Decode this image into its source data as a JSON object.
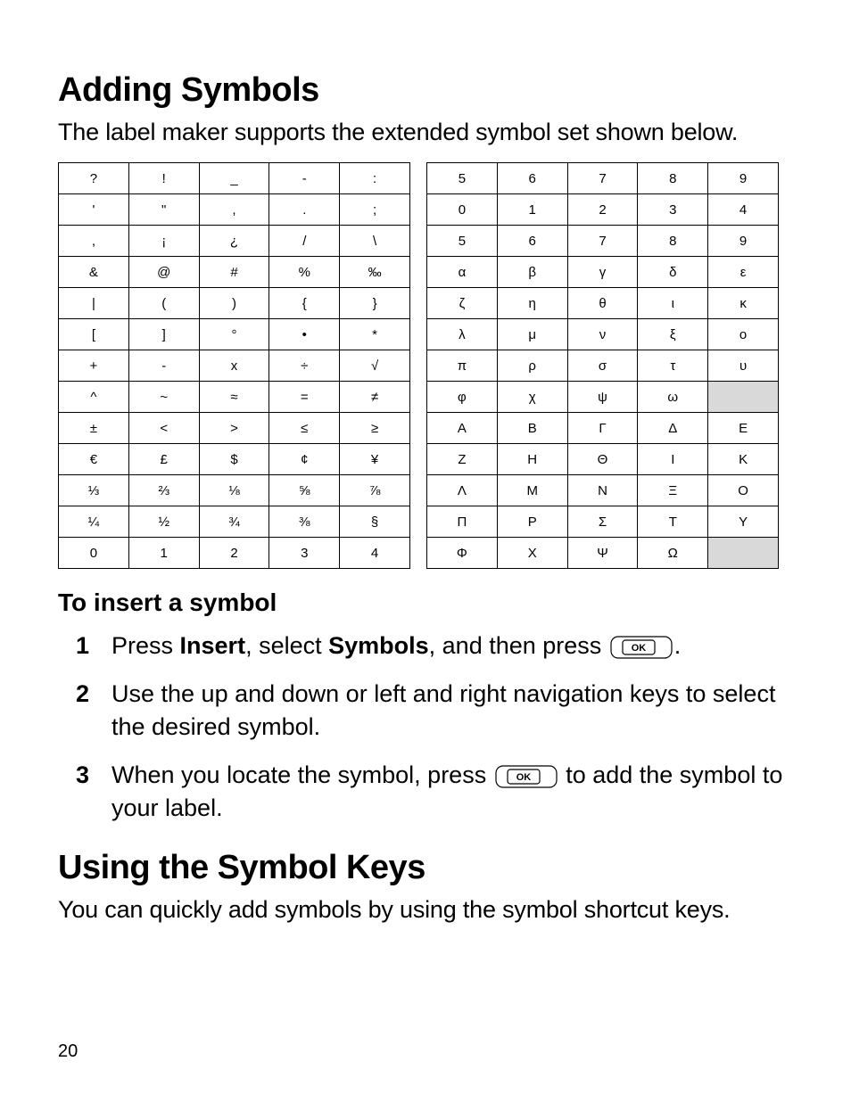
{
  "heading1": "Adding Symbols",
  "intro": "The label maker supports the extended symbol set shown below.",
  "left_table": {
    "columns": 5,
    "rows": [
      [
        "?",
        "!",
        "_",
        "-",
        ":"
      ],
      [
        "'",
        "\"",
        ",",
        ".",
        ";"
      ],
      [
        ",",
        "¡",
        "¿",
        "/",
        "\\"
      ],
      [
        "&",
        "@",
        "#",
        "%",
        "‰"
      ],
      [
        "|",
        "(",
        ")",
        "{",
        "}"
      ],
      [
        "[",
        "]",
        "°",
        "•",
        "*"
      ],
      [
        "+",
        "-",
        "x",
        "÷",
        "√"
      ],
      [
        "^",
        "~",
        "≈",
        "=",
        "≠"
      ],
      [
        "±",
        "<",
        ">",
        "≤",
        "≥"
      ],
      [
        "€",
        "£",
        "$",
        "¢",
        "¥"
      ],
      [
        "⅓",
        "⅔",
        "⅛",
        "⅝",
        "⅞"
      ],
      [
        "¼",
        "½",
        "¾",
        "⅜",
        "§"
      ],
      [
        "0",
        "1",
        "2",
        "3",
        "4"
      ]
    ],
    "shaded": []
  },
  "right_table": {
    "columns": 5,
    "rows": [
      [
        "5",
        "6",
        "7",
        "8",
        "9"
      ],
      [
        "0",
        "1",
        "2",
        "3",
        "4"
      ],
      [
        "5",
        "6",
        "7",
        "8",
        "9"
      ],
      [
        "α",
        "β",
        "γ",
        "δ",
        "ε"
      ],
      [
        "ζ",
        "η",
        "θ",
        "ι",
        "κ"
      ],
      [
        "λ",
        "μ",
        "ν",
        "ξ",
        "ο"
      ],
      [
        "π",
        "ρ",
        "σ",
        "τ",
        "υ"
      ],
      [
        "φ",
        "χ",
        "ψ",
        "ω",
        ""
      ],
      [
        "Α",
        "Β",
        "Γ",
        "Δ",
        "Ε"
      ],
      [
        "Ζ",
        "Η",
        "Θ",
        "Ι",
        "Κ"
      ],
      [
        "Λ",
        "Μ",
        "Ν",
        "Ξ",
        "Ο"
      ],
      [
        "Π",
        "Ρ",
        "Σ",
        "Τ",
        "Υ"
      ],
      [
        "Φ",
        "Χ",
        "Ψ",
        "Ω",
        ""
      ]
    ],
    "shaded": [
      [
        7,
        4
      ],
      [
        12,
        4
      ]
    ]
  },
  "subheading": "To insert a symbol",
  "steps": [
    {
      "num": "1",
      "pre": "Press ",
      "b1": "Insert",
      "mid1": ", select ",
      "b2": "Symbols",
      "mid2": ", and then press ",
      "ok": true,
      "post": "."
    },
    {
      "num": "2",
      "text": "Use the up and down or left and right navigation keys to select the desired symbol."
    },
    {
      "num": "3",
      "pre": "When you locate the symbol, press ",
      "ok": true,
      "post": " to add the symbol to your label."
    }
  ],
  "heading2": "Using the Symbol Keys",
  "intro2": "You can quickly add symbols by using the symbol shortcut keys.",
  "page_number": "20",
  "ok_label": "OK",
  "colors": {
    "shaded_bg": "#d9d9d9",
    "text": "#000000",
    "bg": "#ffffff",
    "border": "#000000"
  },
  "typography": {
    "h1_fontsize": 38,
    "body_fontsize": 27,
    "table_cell_fontsize": 15,
    "subheading_fontsize": 28,
    "pagenum_fontsize": 20
  }
}
